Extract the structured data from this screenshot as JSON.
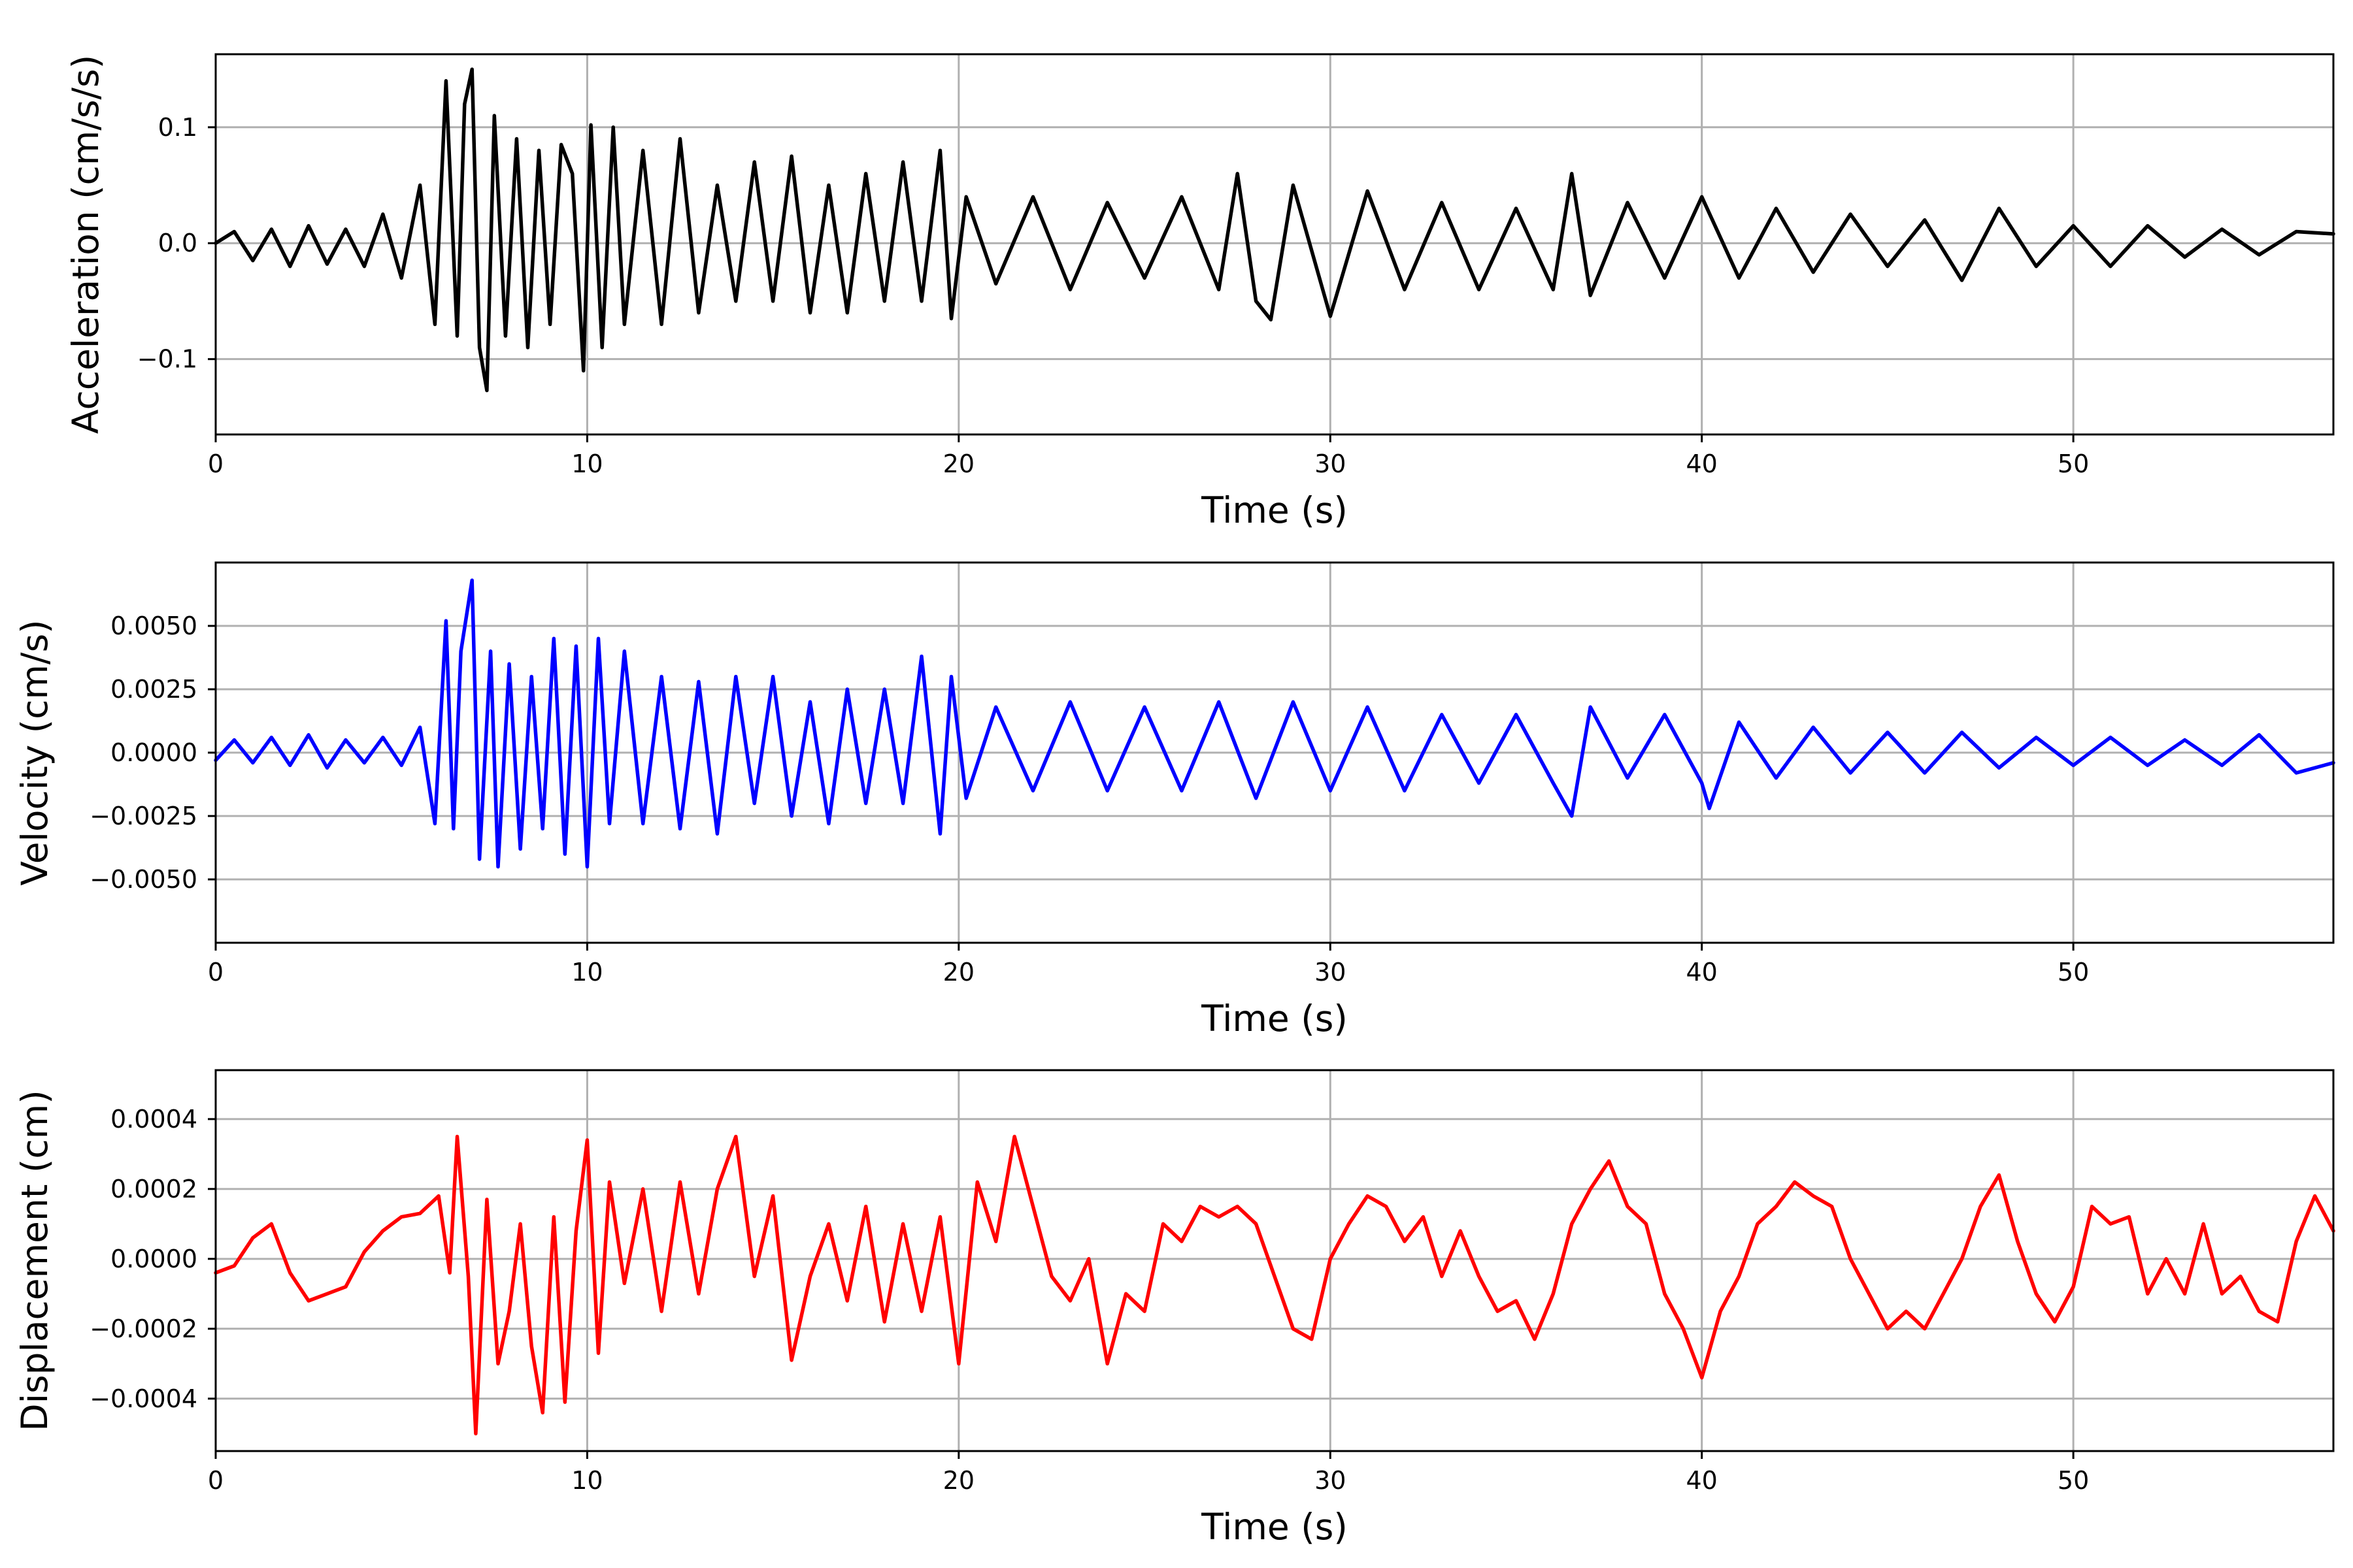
{
  "chart_data": [
    {
      "type": "line",
      "xlabel": "Time (s)",
      "ylabel": "Acceleration (cm/s/s)",
      "xlim": [
        0,
        57
      ],
      "ylim": [
        -0.165,
        0.163
      ],
      "grid": true,
      "xticks": [
        0,
        10,
        20,
        30,
        40,
        50
      ],
      "xtick_labels": [
        "0",
        "10",
        "20",
        "30",
        "40",
        "50"
      ],
      "yticks": [
        0.1,
        0.0,
        -0.1
      ],
      "ytick_labels": [
        "0.1",
        "0.0",
        "−0.1"
      ],
      "series": [
        {
          "color": "#000000",
          "x": [
            0,
            0.5,
            1,
            1.5,
            2,
            2.5,
            3,
            3.5,
            4,
            4.5,
            5,
            5.5,
            5.9,
            6.2,
            6.5,
            6.7,
            6.9,
            7.1,
            7.3,
            7.5,
            7.8,
            8.1,
            8.4,
            8.7,
            9.0,
            9.3,
            9.6,
            9.9,
            10.1,
            10.4,
            10.7,
            11.0,
            11.5,
            12.0,
            12.5,
            13.0,
            13.5,
            14.0,
            14.5,
            15.0,
            15.5,
            16.0,
            16.5,
            17.0,
            17.5,
            18.0,
            18.5,
            19.0,
            19.5,
            19.8,
            20.2,
            21.0,
            22.0,
            23.0,
            24.0,
            25.0,
            26.0,
            27.0,
            27.5,
            28.0,
            28.4,
            29.0,
            30.0,
            31.0,
            32.0,
            33.0,
            34.0,
            35.0,
            36.0,
            36.5,
            37.0,
            38.0,
            39.0,
            40.0,
            41.0,
            42.0,
            43.0,
            44.0,
            45.0,
            46.0,
            47.0,
            48.0,
            49.0,
            50.0,
            51.0,
            52.0,
            53.0,
            54.0,
            55.0,
            56.0,
            57.0
          ],
          "y": [
            0.0,
            0.01,
            -0.015,
            0.012,
            -0.02,
            0.015,
            -0.018,
            0.012,
            -0.02,
            0.025,
            -0.03,
            0.05,
            -0.07,
            0.14,
            -0.08,
            0.12,
            0.15,
            -0.09,
            -0.127,
            0.11,
            -0.08,
            0.09,
            -0.09,
            0.08,
            -0.07,
            0.085,
            0.06,
            -0.11,
            0.102,
            -0.09,
            0.1,
            -0.07,
            0.08,
            -0.07,
            0.09,
            -0.06,
            0.05,
            -0.05,
            0.07,
            -0.05,
            0.075,
            -0.06,
            0.05,
            -0.06,
            0.06,
            -0.05,
            0.07,
            -0.05,
            0.08,
            -0.065,
            0.04,
            -0.035,
            0.04,
            -0.04,
            0.035,
            -0.03,
            0.04,
            -0.04,
            0.06,
            -0.05,
            -0.066,
            0.05,
            -0.063,
            0.045,
            -0.04,
            0.035,
            -0.04,
            0.03,
            -0.04,
            0.06,
            -0.045,
            0.035,
            -0.03,
            0.04,
            -0.03,
            0.03,
            -0.025,
            0.025,
            -0.02,
            0.02,
            -0.032,
            0.03,
            -0.02,
            0.015,
            -0.02,
            0.015,
            -0.012,
            0.012,
            -0.01,
            0.01,
            0.008
          ]
        }
      ]
    },
    {
      "type": "line",
      "xlabel": "Time (s)",
      "ylabel": "Velocity (cm/s)",
      "xlim": [
        0,
        57
      ],
      "ylim": [
        -0.0075,
        0.0075
      ],
      "grid": true,
      "xticks": [
        0,
        10,
        20,
        30,
        40,
        50
      ],
      "xtick_labels": [
        "0",
        "10",
        "20",
        "30",
        "40",
        "50"
      ],
      "yticks": [
        0.005,
        0.0025,
        0.0,
        -0.0025,
        -0.005
      ],
      "ytick_labels": [
        "0.0050",
        "0.0025",
        "0.0000",
        "−0.0025",
        "−0.0050"
      ],
      "series": [
        {
          "color": "#0000ff",
          "x": [
            0,
            0.5,
            1,
            1.5,
            2,
            2.5,
            3,
            3.5,
            4,
            4.5,
            5,
            5.5,
            5.9,
            6.2,
            6.4,
            6.6,
            6.9,
            7.1,
            7.4,
            7.6,
            7.9,
            8.2,
            8.5,
            8.8,
            9.1,
            9.4,
            9.7,
            10.0,
            10.3,
            10.6,
            11.0,
            11.5,
            12.0,
            12.5,
            13.0,
            13.5,
            14.0,
            14.5,
            15.0,
            15.5,
            16.0,
            16.5,
            17.0,
            17.5,
            18.0,
            18.5,
            19.0,
            19.5,
            19.8,
            20.2,
            21.0,
            22.0,
            23.0,
            24.0,
            25.0,
            26.0,
            27.0,
            28.0,
            29.0,
            30.0,
            31.0,
            32.0,
            33.0,
            34.0,
            35.0,
            36.0,
            36.5,
            37.0,
            38.0,
            39.0,
            40.0,
            40.2,
            41.0,
            42.0,
            43.0,
            44.0,
            45.0,
            46.0,
            47.0,
            48.0,
            49.0,
            50.0,
            51.0,
            52.0,
            53.0,
            54.0,
            55.0,
            56.0,
            57.0
          ],
          "y": [
            -0.0003,
            0.0005,
            -0.0004,
            0.0006,
            -0.0005,
            0.0007,
            -0.0006,
            0.0005,
            -0.0004,
            0.0006,
            -0.0005,
            0.001,
            -0.0028,
            0.0052,
            -0.003,
            0.004,
            0.0068,
            -0.0042,
            0.004,
            -0.0045,
            0.0035,
            -0.0038,
            0.003,
            -0.003,
            0.0045,
            -0.004,
            0.0042,
            -0.0045,
            0.0045,
            -0.0028,
            0.004,
            -0.0028,
            0.003,
            -0.003,
            0.0028,
            -0.0032,
            0.003,
            -0.002,
            0.003,
            -0.0025,
            0.002,
            -0.0028,
            0.0025,
            -0.002,
            0.0025,
            -0.002,
            0.0038,
            -0.0032,
            0.003,
            -0.0018,
            0.0018,
            -0.0015,
            0.002,
            -0.0015,
            0.0018,
            -0.0015,
            0.002,
            -0.0018,
            0.002,
            -0.0015,
            0.0018,
            -0.0015,
            0.0015,
            -0.0012,
            0.0015,
            -0.0012,
            -0.0025,
            0.0018,
            -0.001,
            0.0015,
            -0.0012,
            -0.0022,
            0.0012,
            -0.001,
            0.001,
            -0.0008,
            0.0008,
            -0.0008,
            0.0008,
            -0.0006,
            0.0006,
            -0.0005,
            0.0006,
            -0.0005,
            0.0005,
            -0.0005,
            0.0007,
            -0.0008,
            -0.0004
          ]
        }
      ]
    },
    {
      "type": "line",
      "xlabel": "Time (s)",
      "ylabel": "Displacement (cm)",
      "xlim": [
        0,
        57
      ],
      "ylim": [
        -0.00055,
        0.00054
      ],
      "grid": true,
      "xticks": [
        0,
        10,
        20,
        30,
        40,
        50
      ],
      "xtick_labels": [
        "0",
        "10",
        "20",
        "30",
        "40",
        "50"
      ],
      "yticks": [
        0.0004,
        0.0002,
        0.0,
        -0.0002,
        -0.0004
      ],
      "ytick_labels": [
        "0.0004",
        "0.0002",
        "0.0000",
        "−0.0002",
        "−0.0004"
      ],
      "series": [
        {
          "color": "#ff0000",
          "x": [
            0,
            0.5,
            1,
            1.5,
            2,
            2.5,
            3,
            3.5,
            4,
            4.5,
            5,
            5.5,
            6.0,
            6.3,
            6.5,
            6.8,
            7.0,
            7.3,
            7.6,
            7.9,
            8.2,
            8.5,
            8.8,
            9.1,
            9.4,
            9.7,
            10.0,
            10.3,
            10.6,
            11.0,
            11.5,
            12.0,
            12.5,
            13.0,
            13.5,
            14.0,
            14.5,
            15.0,
            15.5,
            16.0,
            16.5,
            17.0,
            17.5,
            18.0,
            18.5,
            19.0,
            19.5,
            20.0,
            20.5,
            21.0,
            21.5,
            22.0,
            22.5,
            23.0,
            23.5,
            24.0,
            24.5,
            25.0,
            25.5,
            26.0,
            26.5,
            27.0,
            27.5,
            28.0,
            28.5,
            29.0,
            29.5,
            30.0,
            30.5,
            31.0,
            31.5,
            32.0,
            32.5,
            33.0,
            33.5,
            34.0,
            34.5,
            35.0,
            35.5,
            36.0,
            36.5,
            37.0,
            37.5,
            38.0,
            38.5,
            39.0,
            39.5,
            40.0,
            40.5,
            41.0,
            41.5,
            42.0,
            42.5,
            43.0,
            43.5,
            44.0,
            44.5,
            45.0,
            45.5,
            46.0,
            46.5,
            47.0,
            47.5,
            48.0,
            48.5,
            49.0,
            49.5,
            50.0,
            50.5,
            51.0,
            51.5,
            52.0,
            52.5,
            53.0,
            53.5,
            54.0,
            54.5,
            55.0,
            55.5,
            56.0,
            56.5,
            57.0
          ],
          "y": [
            -4e-05,
            -2e-05,
            6e-05,
            0.0001,
            -4e-05,
            -0.00012,
            -0.0001,
            -8e-05,
            2e-05,
            8e-05,
            0.00012,
            0.00013,
            0.00018,
            -4e-05,
            0.00035,
            -5e-05,
            -0.0005,
            0.00017,
            -0.0003,
            -0.00015,
            0.0001,
            -0.00025,
            -0.00044,
            0.00012,
            -0.00041,
            8e-05,
            0.00034,
            -0.00027,
            0.00022,
            -7e-05,
            0.0002,
            -0.00015,
            0.00022,
            -0.0001,
            0.0002,
            0.00035,
            -5e-05,
            0.00018,
            -0.00029,
            -5e-05,
            0.0001,
            -0.00012,
            0.00015,
            -0.00018,
            0.0001,
            -0.00015,
            0.00012,
            -0.0003,
            0.00022,
            5e-05,
            0.00035,
            0.00015,
            -5e-05,
            -0.00012,
            0.0,
            -0.0003,
            -0.0001,
            -0.00015,
            0.0001,
            5e-05,
            0.00015,
            0.00012,
            0.00015,
            0.0001,
            -5e-05,
            -0.0002,
            -0.00023,
            0.0,
            0.0001,
            0.00018,
            0.00015,
            5e-05,
            0.00012,
            -5e-05,
            8e-05,
            -5e-05,
            -0.00015,
            -0.00012,
            -0.00023,
            -0.0001,
            0.0001,
            0.0002,
            0.00028,
            0.00015,
            0.0001,
            -0.0001,
            -0.0002,
            -0.00034,
            -0.00015,
            -5e-05,
            0.0001,
            0.00015,
            0.00022,
            0.00018,
            0.00015,
            0.0,
            -0.0001,
            -0.0002,
            -0.00015,
            -0.0002,
            -0.0001,
            0.0,
            0.00015,
            0.00024,
            5e-05,
            -0.0001,
            -0.00018,
            -8e-05,
            0.00015,
            0.0001,
            0.00012,
            -0.0001,
            0.0,
            -0.0001,
            0.0001,
            -0.0001,
            -5e-05,
            -0.00015,
            -0.00018,
            5e-05,
            0.00018,
            8e-05
          ]
        }
      ]
    }
  ]
}
